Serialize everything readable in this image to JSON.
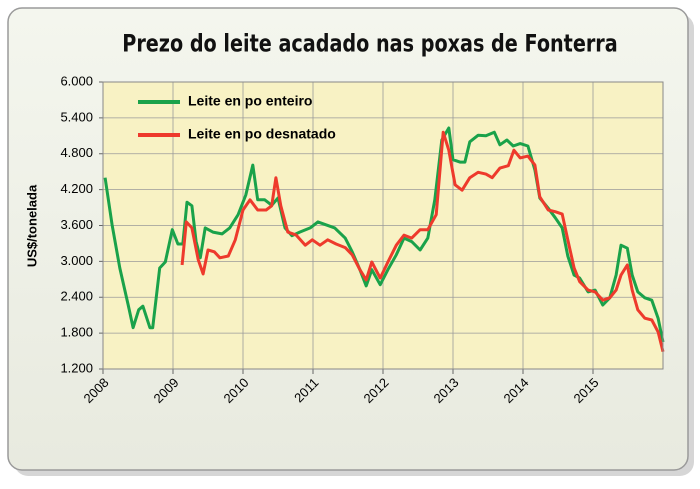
{
  "chart_data": {
    "type": "line",
    "title": "Prezo do leite acadado nas poxas de Fonterra",
    "y_label": "US$/tonelada",
    "xlim": [
      2008,
      2016
    ],
    "xticks": [
      2008,
      2009,
      2010,
      2011,
      2012,
      2013,
      2014,
      2015
    ],
    "ylim": [
      1200,
      6000
    ],
    "yticks": [
      {
        "value": 1200,
        "label": "1.200"
      },
      {
        "value": 1800,
        "label": "1.800"
      },
      {
        "value": 2400,
        "label": "2.400"
      },
      {
        "value": 3000,
        "label": "3.000"
      },
      {
        "value": 3600,
        "label": "3.600"
      },
      {
        "value": 4200,
        "label": "4.200"
      },
      {
        "value": 4800,
        "label": "4.800"
      },
      {
        "value": 5400,
        "label": "5.400"
      },
      {
        "value": 6000,
        "label": "6.000"
      }
    ],
    "grid": true,
    "legend": "top-left",
    "series": [
      {
        "name": "Leite en po enteiro",
        "color": "#1aa24a",
        "x": [
          2008.03,
          2008.13,
          2008.24,
          2008.36,
          2008.43,
          2008.51,
          2008.57,
          2008.67,
          2008.71,
          2008.81,
          2008.89,
          2008.99,
          2009.07,
          2009.14,
          2009.2,
          2009.27,
          2009.33,
          2009.39,
          2009.46,
          2009.57,
          2009.7,
          2009.81,
          2009.93,
          2010.04,
          2010.14,
          2010.21,
          2010.31,
          2010.41,
          2010.5,
          2010.6,
          2010.7,
          2010.81,
          2010.96,
          2011.07,
          2011.19,
          2011.31,
          2011.46,
          2011.56,
          2011.67,
          2011.76,
          2011.84,
          2011.96,
          2012.07,
          2012.19,
          2012.3,
          2012.41,
          2012.53,
          2012.64,
          2012.74,
          2012.84,
          2012.94,
          2013.0,
          2013.1,
          2013.17,
          2013.24,
          2013.36,
          2013.47,
          2013.59,
          2013.67,
          2013.77,
          2013.86,
          2013.96,
          2014.07,
          2014.17,
          2014.24,
          2014.36,
          2014.46,
          2014.56,
          2014.64,
          2014.73,
          2014.81,
          2014.93,
          2015.03,
          2015.14,
          2015.24,
          2015.33,
          2015.4,
          2015.49,
          2015.56,
          2015.64,
          2015.74,
          2015.84,
          2015.93,
          2016.0
        ],
        "values": [
          4400,
          3610,
          2890,
          2270,
          1890,
          2190,
          2250,
          1890,
          1890,
          2890,
          2990,
          3530,
          3290,
          3290,
          3990,
          3930,
          3330,
          3060,
          3560,
          3490,
          3460,
          3560,
          3780,
          4110,
          4610,
          4030,
          4030,
          3940,
          4060,
          3560,
          3430,
          3490,
          3560,
          3660,
          3610,
          3560,
          3390,
          3160,
          2860,
          2590,
          2860,
          2610,
          2860,
          3110,
          3390,
          3330,
          3190,
          3390,
          4030,
          5030,
          5230,
          4700,
          4660,
          4660,
          5000,
          5110,
          5100,
          5160,
          4950,
          5030,
          4930,
          4970,
          4930,
          4530,
          4060,
          3890,
          3730,
          3560,
          3090,
          2770,
          2720,
          2490,
          2520,
          2270,
          2390,
          2770,
          3270,
          3220,
          2770,
          2490,
          2390,
          2350,
          2050,
          1650
        ]
      },
      {
        "name": "Leite en po desnatado",
        "color": "#ee3a2c",
        "x": [
          2009.13,
          2009.19,
          2009.27,
          2009.36,
          2009.43,
          2009.5,
          2009.59,
          2009.67,
          2009.79,
          2009.89,
          2010.0,
          2010.1,
          2010.21,
          2010.33,
          2010.41,
          2010.47,
          2010.54,
          2010.64,
          2010.76,
          2010.89,
          2010.99,
          2011.1,
          2011.21,
          2011.33,
          2011.46,
          2011.56,
          2011.67,
          2011.76,
          2011.84,
          2011.96,
          2012.07,
          2012.19,
          2012.3,
          2012.41,
          2012.53,
          2012.64,
          2012.76,
          2012.86,
          2012.94,
          2013.03,
          2013.13,
          2013.24,
          2013.36,
          2013.47,
          2013.56,
          2013.67,
          2013.79,
          2013.87,
          2013.96,
          2014.07,
          2014.17,
          2014.24,
          2014.36,
          2014.46,
          2014.56,
          2014.64,
          2014.73,
          2014.81,
          2014.93,
          2015.03,
          2015.14,
          2015.24,
          2015.33,
          2015.4,
          2015.49,
          2015.56,
          2015.64,
          2015.74,
          2015.84,
          2015.93,
          2016.0
        ],
        "values": [
          2940,
          3660,
          3560,
          3030,
          2790,
          3190,
          3160,
          3060,
          3090,
          3360,
          3860,
          4030,
          3860,
          3860,
          3930,
          4400,
          3930,
          3490,
          3440,
          3270,
          3360,
          3270,
          3360,
          3290,
          3230,
          3110,
          2860,
          2690,
          2990,
          2720,
          2990,
          3270,
          3440,
          3390,
          3530,
          3530,
          3780,
          5160,
          4860,
          4280,
          4190,
          4400,
          4490,
          4460,
          4400,
          4560,
          4600,
          4860,
          4730,
          4760,
          4610,
          4080,
          3860,
          3830,
          3790,
          3360,
          2890,
          2660,
          2520,
          2490,
          2350,
          2390,
          2520,
          2770,
          2940,
          2520,
          2190,
          2050,
          2020,
          1820,
          1490
        ]
      }
    ]
  }
}
